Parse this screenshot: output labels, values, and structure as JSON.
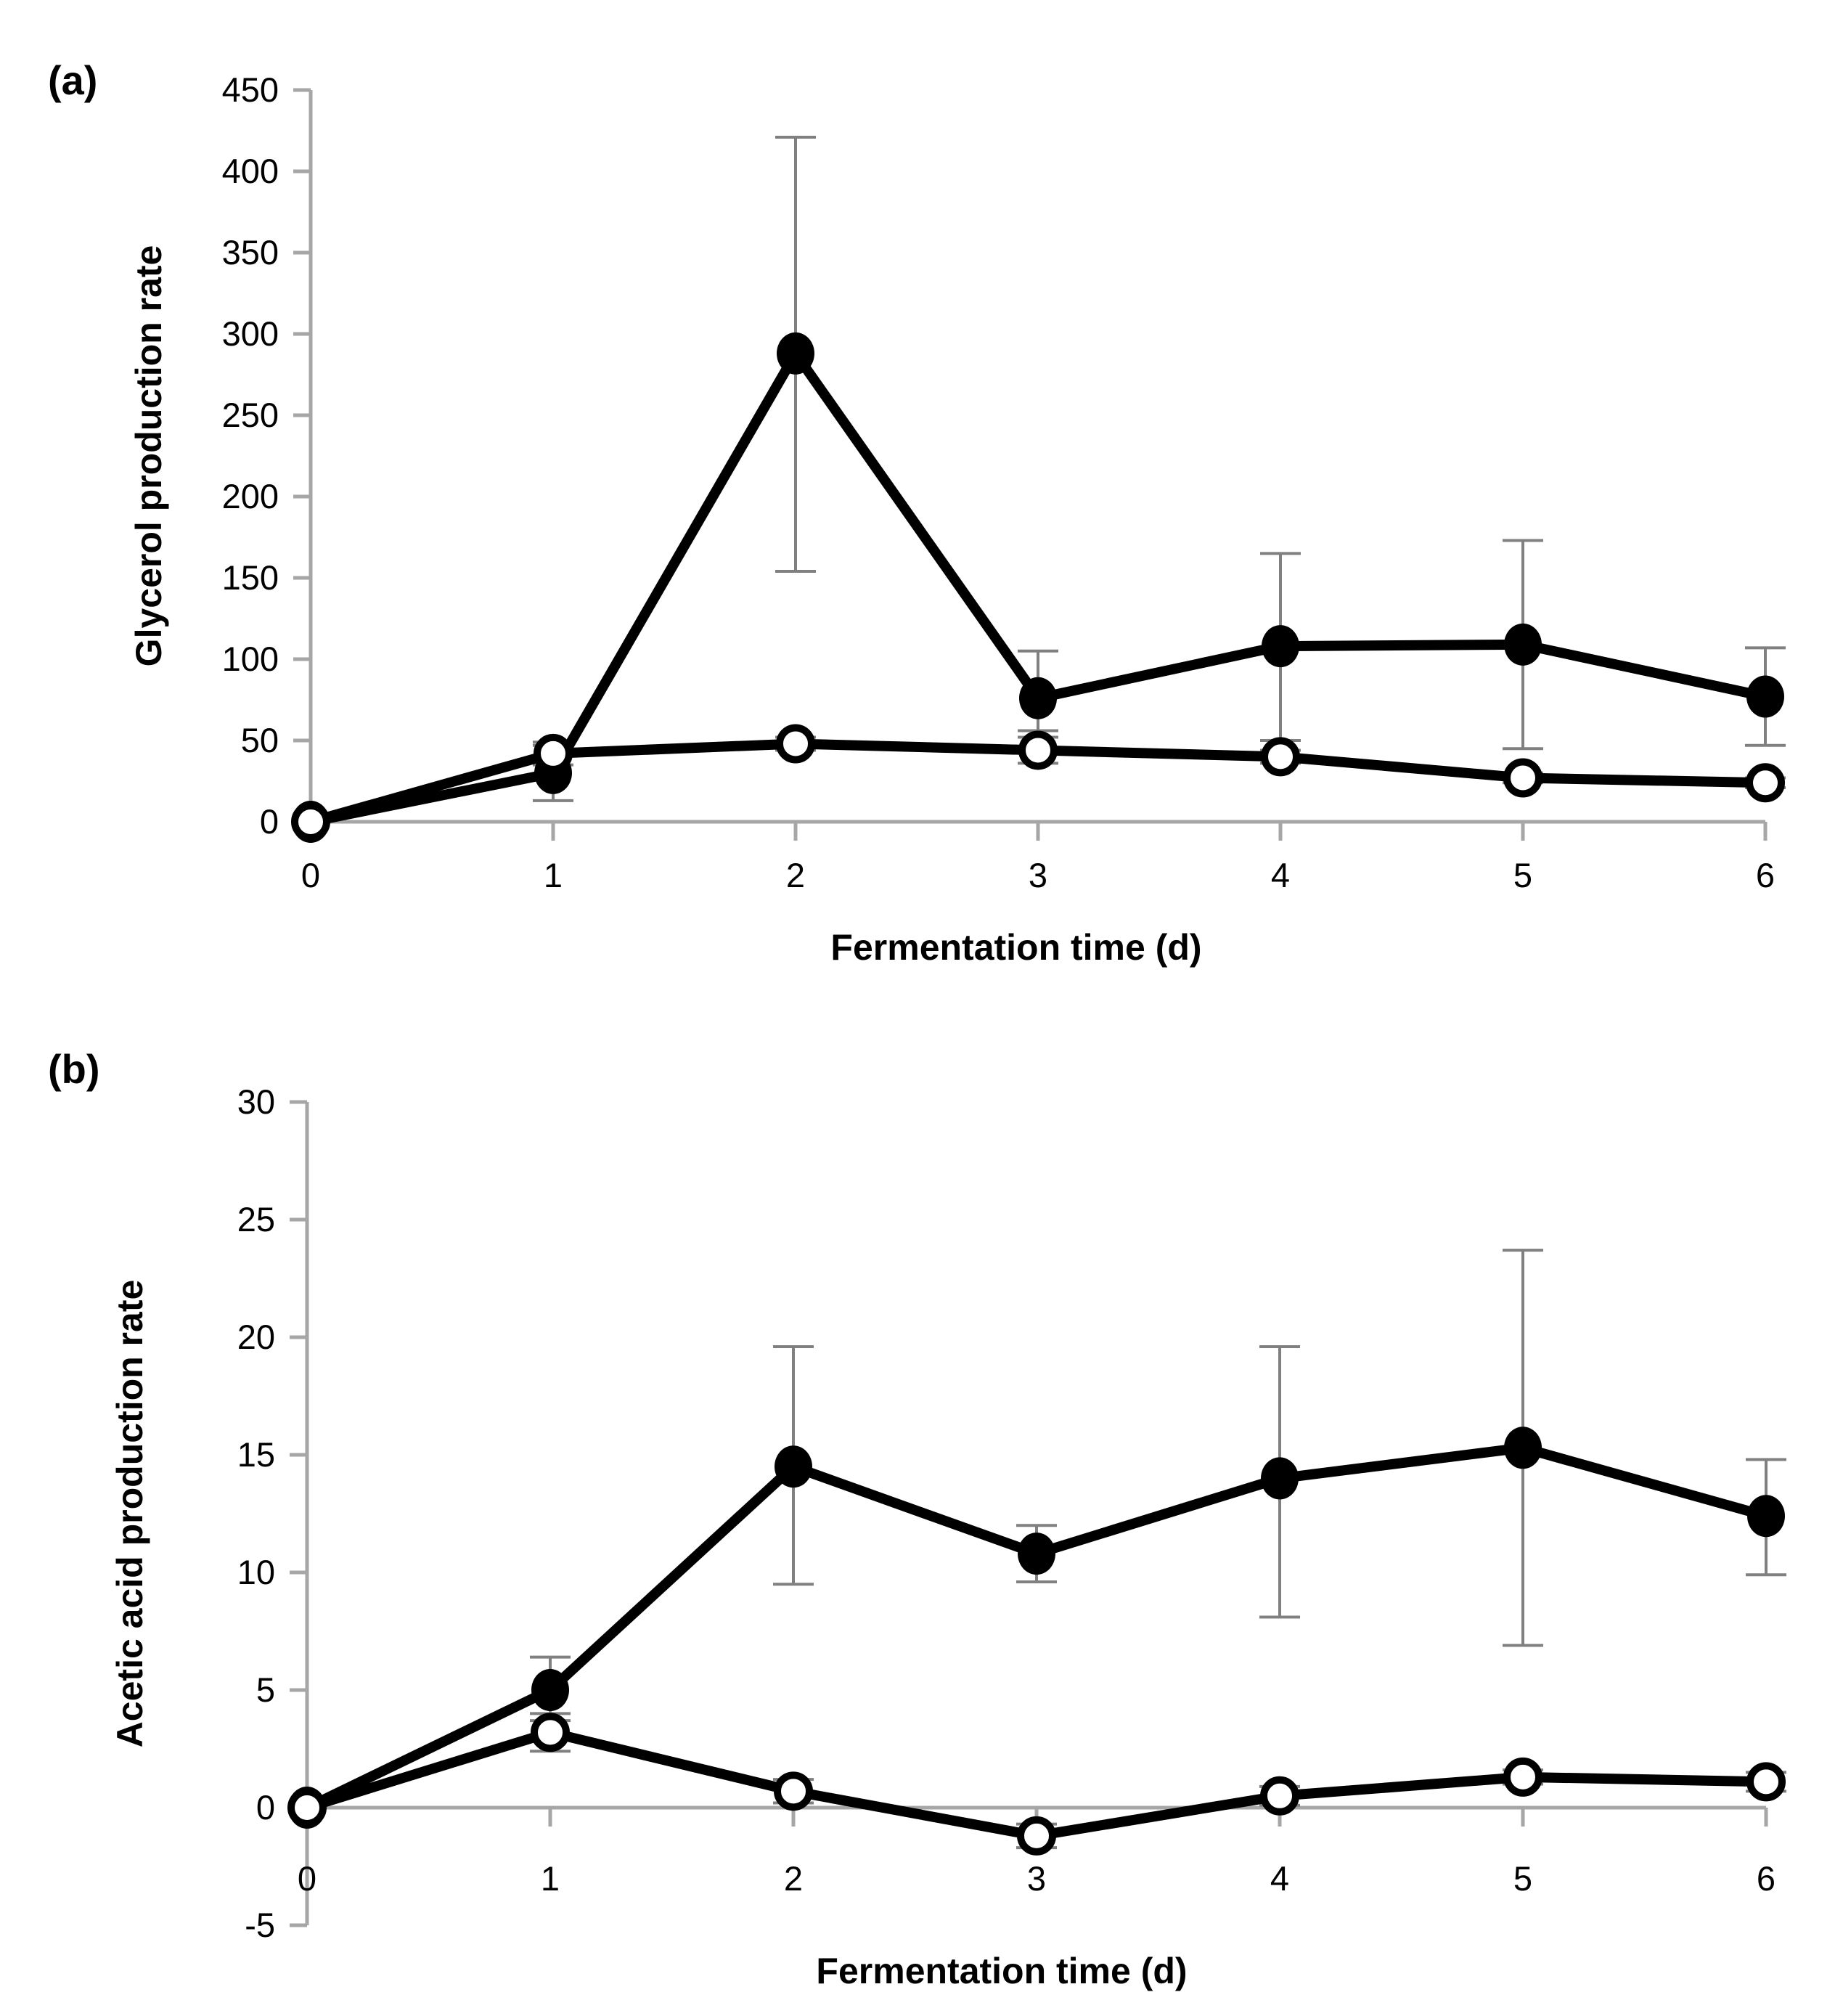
{
  "figure": {
    "background_color": "#ffffff",
    "axis_color": "#a6a6a6",
    "errorbar_color": "#808080",
    "series_color": "#000000"
  },
  "chart_data": [
    {
      "type": "line",
      "panel_label": "(a)",
      "title": "",
      "xlabel": "Fermentation time (d)",
      "ylabel": "Glycerol production rate",
      "x": [
        0,
        1,
        2,
        3,
        4,
        5,
        6
      ],
      "xticks": [
        0,
        1,
        2,
        3,
        4,
        5,
        6
      ],
      "yticks": [
        450,
        400,
        350,
        300,
        250,
        200,
        150,
        100,
        50,
        0
      ],
      "ylim": [
        0,
        450
      ],
      "xlim": [
        0,
        6
      ],
      "grid": "off",
      "legend": "none",
      "series": [
        {
          "name": "filled-circle-series",
          "marker": "filled",
          "values": [
            0,
            30,
            288,
            76,
            108,
            109,
            77
          ],
          "err_up": [
            0,
            17,
            133,
            29,
            57,
            64,
            30
          ],
          "err_down": [
            0,
            17,
            134,
            20,
            58,
            64,
            30
          ]
        },
        {
          "name": "open-circle-series",
          "marker": "open",
          "values": [
            0,
            42,
            48,
            44,
            40,
            27,
            24
          ],
          "err_up": [
            0,
            7,
            4,
            8,
            4,
            3,
            3
          ],
          "err_down": [
            0,
            7,
            4,
            8,
            4,
            3,
            3
          ]
        }
      ]
    },
    {
      "type": "line",
      "panel_label": "(b)",
      "title": "",
      "xlabel": "Fermentation time (d)",
      "ylabel": "Acetic acid production rate",
      "x": [
        0,
        1,
        2,
        3,
        4,
        5,
        6
      ],
      "xticks": [
        0,
        1,
        2,
        3,
        4,
        5,
        6
      ],
      "yticks": [
        30,
        25,
        20,
        15,
        10,
        5,
        0,
        -5
      ],
      "ylim": [
        -5,
        30
      ],
      "xlim": [
        0,
        6
      ],
      "grid": "off",
      "legend": "none",
      "series": [
        {
          "name": "filled-circle-series",
          "marker": "filled",
          "values": [
            0,
            5.0,
            14.5,
            10.8,
            14.0,
            15.3,
            12.4
          ],
          "err_up": [
            0,
            1.4,
            5.1,
            1.2,
            5.6,
            8.4,
            2.4
          ],
          "err_down": [
            0,
            1.3,
            5.0,
            1.2,
            5.9,
            8.4,
            2.5
          ]
        },
        {
          "name": "open-circle-series",
          "marker": "open",
          "values": [
            0,
            3.2,
            0.7,
            -1.2,
            0.5,
            1.3,
            1.1
          ],
          "err_up": [
            0,
            0.8,
            0.5,
            0.5,
            0.4,
            0.3,
            0.4
          ],
          "err_down": [
            0,
            0.8,
            0.5,
            0.5,
            0.4,
            0.3,
            0.4
          ]
        }
      ]
    }
  ]
}
